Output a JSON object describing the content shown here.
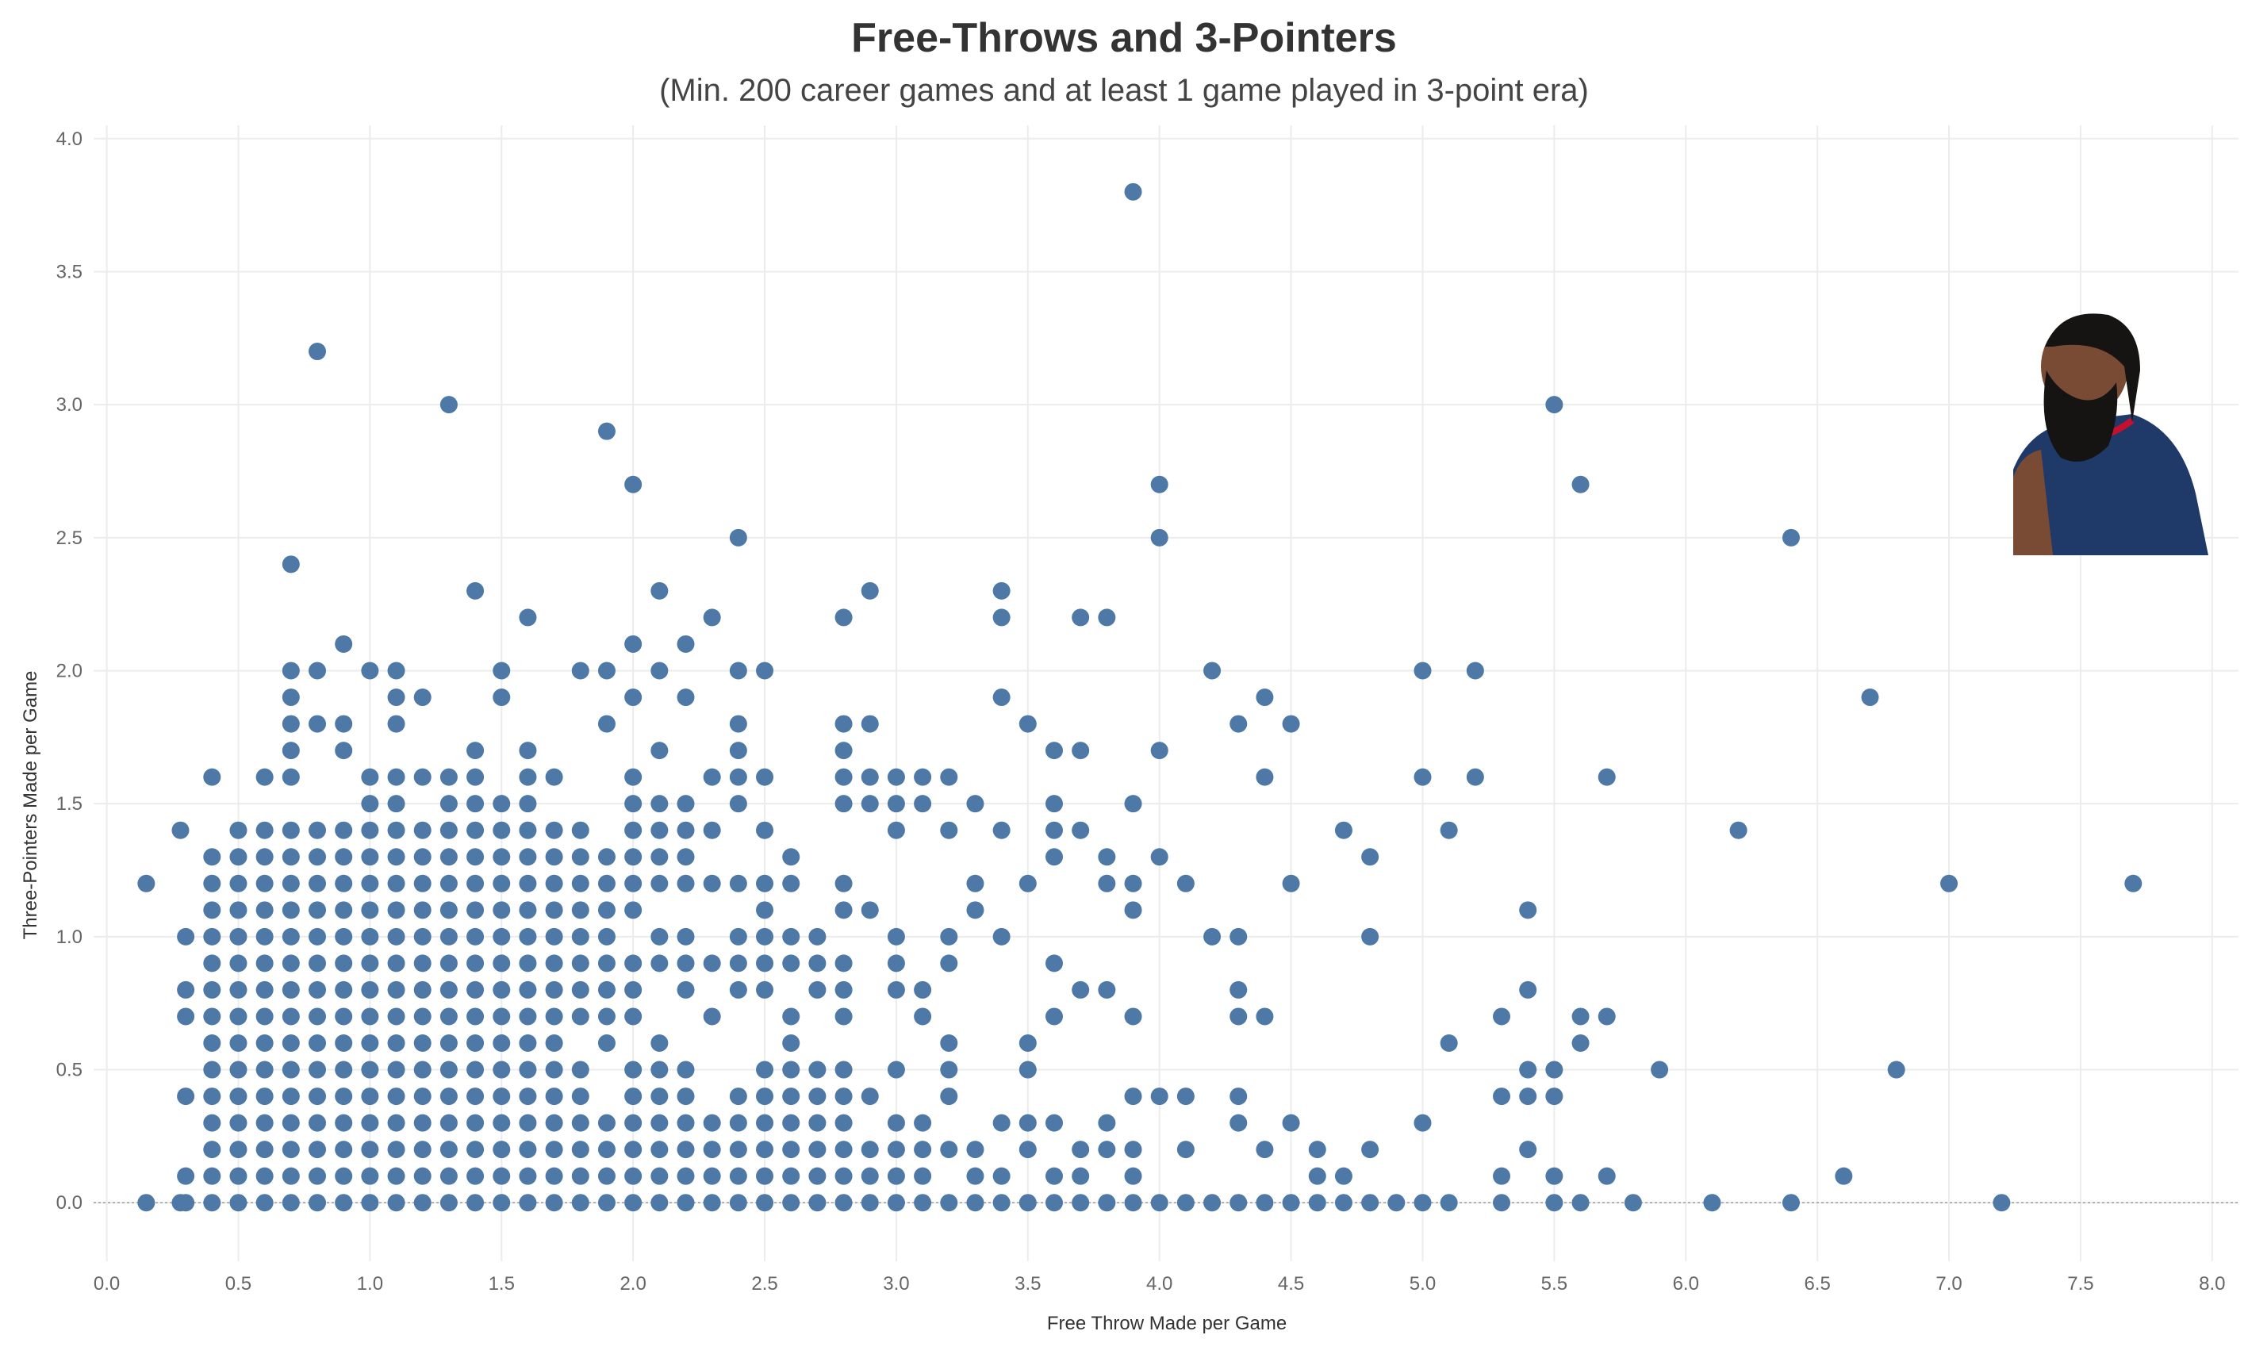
{
  "chart_data": {
    "type": "scatter",
    "title": "Free-Throws and 3-Pointers",
    "subtitle": "(Min. 200 career games and at least 1 game played in 3-point era)",
    "xlabel": "Free Throw Made per Game",
    "ylabel": "Three-Pointers Made per Game",
    "xlim": [
      -0.05,
      8.1
    ],
    "ylim": [
      -0.22,
      4.05
    ],
    "xticks": [
      "0.0",
      "0.5",
      "1.0",
      "1.5",
      "2.0",
      "2.5",
      "3.0",
      "3.5",
      "4.0",
      "4.5",
      "5.0",
      "5.5",
      "6.0",
      "6.5",
      "7.0",
      "7.5",
      "8.0"
    ],
    "yticks": [
      "0.0",
      "0.5",
      "1.0",
      "1.5",
      "2.0",
      "2.5",
      "3.0",
      "3.5",
      "4.0"
    ],
    "grid": true,
    "marker_color": "#4e79a7",
    "points": [
      [
        0.8,
        3.2
      ],
      [
        1.3,
        3.0
      ],
      [
        1.9,
        2.9
      ],
      [
        2.0,
        2.7
      ],
      [
        0.7,
        2.4
      ],
      [
        2.4,
        2.5
      ],
      [
        1.4,
        2.3
      ],
      [
        2.1,
        2.3
      ],
      [
        2.3,
        2.2
      ],
      [
        1.6,
        2.2
      ],
      [
        0.9,
        2.1
      ],
      [
        2.0,
        2.1
      ],
      [
        2.2,
        2.1
      ],
      [
        3.9,
        3.8
      ],
      [
        4.0,
        2.7
      ],
      [
        4.0,
        2.5
      ],
      [
        3.4,
        2.3
      ],
      [
        3.4,
        2.2
      ],
      [
        2.9,
        2.3
      ],
      [
        2.8,
        2.2
      ],
      [
        3.7,
        2.2
      ],
      [
        3.8,
        2.2
      ],
      [
        4.2,
        2.0
      ],
      [
        4.4,
        1.9
      ],
      [
        4.3,
        1.8
      ],
      [
        4.5,
        1.8
      ],
      [
        4.4,
        1.6
      ],
      [
        3.4,
        1.9
      ],
      [
        3.5,
        1.8
      ],
      [
        3.6,
        1.7
      ],
      [
        3.7,
        1.7
      ],
      [
        4.0,
        1.7
      ],
      [
        3.9,
        1.5
      ],
      [
        5.5,
        3.0
      ],
      [
        5.6,
        2.7
      ],
      [
        6.4,
        2.5
      ],
      [
        5.0,
        2.0
      ],
      [
        5.2,
        2.0
      ],
      [
        6.7,
        1.9
      ],
      [
        5.0,
        1.6
      ],
      [
        5.2,
        1.6
      ],
      [
        5.7,
        1.6
      ],
      [
        6.2,
        1.4
      ],
      [
        5.1,
        1.4
      ],
      [
        4.7,
        1.4
      ],
      [
        4.8,
        1.3
      ],
      [
        7.0,
        1.2
      ],
      [
        7.7,
        1.2
      ],
      [
        0.15,
        1.2
      ],
      [
        0.28,
        1.4
      ],
      [
        0.4,
        1.6
      ],
      [
        0.6,
        1.6
      ],
      [
        2.4,
        2.0
      ],
      [
        2.5,
        2.0
      ],
      [
        2.1,
        2.0
      ],
      [
        1.8,
        2.0
      ],
      [
        1.9,
        2.0
      ],
      [
        1.5,
        2.0
      ],
      [
        1.5,
        1.9
      ],
      [
        1.0,
        2.0
      ],
      [
        1.1,
        2.0
      ],
      [
        1.1,
        1.9
      ],
      [
        1.2,
        1.9
      ],
      [
        1.1,
        1.8
      ],
      [
        0.7,
        2.0
      ],
      [
        0.8,
        2.0
      ],
      [
        0.7,
        1.9
      ],
      [
        0.7,
        1.8
      ],
      [
        0.8,
        1.8
      ],
      [
        0.9,
        1.8
      ],
      [
        0.7,
        1.7
      ],
      [
        0.9,
        1.7
      ],
      [
        0.7,
        1.6
      ],
      [
        1.9,
        1.8
      ],
      [
        2.0,
        1.9
      ],
      [
        2.2,
        1.9
      ],
      [
        2.4,
        1.8
      ],
      [
        2.4,
        1.7
      ],
      [
        2.1,
        1.7
      ],
      [
        1.4,
        1.7
      ],
      [
        1.6,
        1.7
      ],
      [
        2.8,
        1.8
      ],
      [
        2.9,
        1.8
      ],
      [
        2.8,
        1.7
      ],
      [
        1.0,
        1.6
      ],
      [
        1.1,
        1.6
      ],
      [
        1.2,
        1.6
      ],
      [
        1.3,
        1.6
      ],
      [
        1.4,
        1.6
      ],
      [
        1.6,
        1.6
      ],
      [
        1.7,
        1.6
      ],
      [
        2.0,
        1.6
      ],
      [
        2.3,
        1.6
      ],
      [
        2.4,
        1.6
      ],
      [
        2.5,
        1.6
      ],
      [
        2.8,
        1.6
      ],
      [
        2.9,
        1.6
      ],
      [
        3.0,
        1.6
      ],
      [
        3.1,
        1.6
      ],
      [
        3.2,
        1.6
      ],
      [
        1.0,
        1.5
      ],
      [
        1.1,
        1.5
      ],
      [
        1.3,
        1.5
      ],
      [
        1.4,
        1.5
      ],
      [
        1.5,
        1.5
      ],
      [
        1.6,
        1.5
      ],
      [
        2.0,
        1.5
      ],
      [
        2.1,
        1.5
      ],
      [
        2.2,
        1.5
      ],
      [
        2.4,
        1.5
      ],
      [
        2.8,
        1.5
      ],
      [
        2.9,
        1.5
      ],
      [
        3.0,
        1.5
      ],
      [
        3.1,
        1.5
      ],
      [
        3.3,
        1.5
      ],
      [
        3.6,
        1.5
      ],
      [
        1.4,
        1.4
      ],
      [
        1.5,
        1.4
      ],
      [
        1.6,
        1.4
      ],
      [
        1.7,
        1.4
      ],
      [
        1.8,
        1.4
      ],
      [
        2.0,
        1.4
      ],
      [
        2.1,
        1.4
      ],
      [
        2.2,
        1.4
      ],
      [
        2.3,
        1.4
      ],
      [
        2.5,
        1.4
      ],
      [
        3.0,
        1.4
      ],
      [
        3.2,
        1.4
      ],
      [
        3.4,
        1.4
      ],
      [
        3.6,
        1.4
      ],
      [
        3.7,
        1.4
      ],
      [
        1.5,
        1.3
      ],
      [
        1.6,
        1.3
      ],
      [
        1.7,
        1.3
      ],
      [
        1.8,
        1.3
      ],
      [
        1.9,
        1.3
      ],
      [
        2.0,
        1.3
      ],
      [
        2.1,
        1.3
      ],
      [
        2.2,
        1.3
      ],
      [
        2.6,
        1.3
      ],
      [
        3.6,
        1.3
      ],
      [
        3.8,
        1.3
      ],
      [
        4.0,
        1.3
      ],
      [
        1.5,
        1.2
      ],
      [
        1.6,
        1.2
      ],
      [
        1.7,
        1.2
      ],
      [
        1.8,
        1.2
      ],
      [
        1.9,
        1.2
      ],
      [
        2.0,
        1.2
      ],
      [
        2.1,
        1.2
      ],
      [
        2.2,
        1.2
      ],
      [
        2.3,
        1.2
      ],
      [
        2.4,
        1.2
      ],
      [
        2.5,
        1.2
      ],
      [
        2.6,
        1.2
      ],
      [
        2.8,
        1.2
      ],
      [
        3.3,
        1.2
      ],
      [
        3.5,
        1.2
      ],
      [
        3.8,
        1.2
      ],
      [
        3.9,
        1.2
      ],
      [
        4.1,
        1.2
      ],
      [
        4.5,
        1.2
      ],
      [
        1.7,
        1.1
      ],
      [
        1.8,
        1.1
      ],
      [
        1.9,
        1.1
      ],
      [
        2.0,
        1.1
      ],
      [
        2.5,
        1.1
      ],
      [
        2.8,
        1.1
      ],
      [
        2.9,
        1.1
      ],
      [
        3.3,
        1.1
      ],
      [
        3.9,
        1.1
      ],
      [
        5.4,
        1.1
      ],
      [
        1.8,
        1.0
      ],
      [
        1.9,
        1.0
      ],
      [
        2.1,
        1.0
      ],
      [
        2.2,
        1.0
      ],
      [
        2.4,
        1.0
      ],
      [
        2.5,
        1.0
      ],
      [
        2.6,
        1.0
      ],
      [
        2.7,
        1.0
      ],
      [
        3.0,
        1.0
      ],
      [
        3.2,
        1.0
      ],
      [
        3.4,
        1.0
      ],
      [
        4.2,
        1.0
      ],
      [
        4.3,
        1.0
      ],
      [
        4.8,
        1.0
      ],
      [
        1.8,
        0.9
      ],
      [
        1.9,
        0.9
      ],
      [
        2.0,
        0.9
      ],
      [
        2.1,
        0.9
      ],
      [
        2.2,
        0.9
      ],
      [
        2.3,
        0.9
      ],
      [
        2.4,
        0.9
      ],
      [
        2.5,
        0.9
      ],
      [
        2.6,
        0.9
      ],
      [
        2.7,
        0.9
      ],
      [
        2.8,
        0.9
      ],
      [
        3.0,
        0.9
      ],
      [
        3.2,
        0.9
      ],
      [
        3.6,
        0.9
      ],
      [
        1.8,
        0.8
      ],
      [
        1.9,
        0.8
      ],
      [
        2.0,
        0.8
      ],
      [
        2.2,
        0.8
      ],
      [
        2.4,
        0.8
      ],
      [
        2.5,
        0.8
      ],
      [
        2.7,
        0.8
      ],
      [
        2.8,
        0.8
      ],
      [
        3.0,
        0.8
      ],
      [
        3.1,
        0.8
      ],
      [
        3.7,
        0.8
      ],
      [
        3.8,
        0.8
      ],
      [
        4.3,
        0.8
      ],
      [
        5.4,
        0.8
      ],
      [
        1.8,
        0.7
      ],
      [
        1.9,
        0.7
      ],
      [
        2.0,
        0.7
      ],
      [
        2.3,
        0.7
      ],
      [
        2.6,
        0.7
      ],
      [
        2.8,
        0.7
      ],
      [
        3.1,
        0.7
      ],
      [
        3.6,
        0.7
      ],
      [
        3.9,
        0.7
      ],
      [
        4.3,
        0.7
      ],
      [
        4.4,
        0.7
      ],
      [
        5.3,
        0.7
      ],
      [
        5.6,
        0.7
      ],
      [
        5.7,
        0.7
      ],
      [
        1.9,
        0.6
      ],
      [
        2.1,
        0.6
      ],
      [
        2.6,
        0.6
      ],
      [
        3.2,
        0.6
      ],
      [
        3.5,
        0.6
      ],
      [
        5.1,
        0.6
      ],
      [
        5.6,
        0.6
      ],
      [
        1.8,
        0.5
      ],
      [
        2.0,
        0.5
      ],
      [
        2.1,
        0.5
      ],
      [
        2.2,
        0.5
      ],
      [
        2.5,
        0.5
      ],
      [
        2.6,
        0.5
      ],
      [
        2.7,
        0.5
      ],
      [
        2.8,
        0.5
      ],
      [
        3.0,
        0.5
      ],
      [
        3.2,
        0.5
      ],
      [
        3.5,
        0.5
      ],
      [
        5.4,
        0.5
      ],
      [
        5.5,
        0.5
      ],
      [
        5.9,
        0.5
      ],
      [
        6.8,
        0.5
      ],
      [
        1.8,
        0.4
      ],
      [
        2.0,
        0.4
      ],
      [
        2.1,
        0.4
      ],
      [
        2.2,
        0.4
      ],
      [
        2.4,
        0.4
      ],
      [
        2.5,
        0.4
      ],
      [
        2.6,
        0.4
      ],
      [
        2.7,
        0.4
      ],
      [
        2.8,
        0.4
      ],
      [
        2.9,
        0.4
      ],
      [
        3.2,
        0.4
      ],
      [
        3.9,
        0.4
      ],
      [
        4.0,
        0.4
      ],
      [
        4.1,
        0.4
      ],
      [
        4.3,
        0.4
      ],
      [
        5.3,
        0.4
      ],
      [
        5.4,
        0.4
      ],
      [
        5.5,
        0.4
      ],
      [
        1.8,
        0.3
      ],
      [
        1.9,
        0.3
      ],
      [
        2.0,
        0.3
      ],
      [
        2.1,
        0.3
      ],
      [
        2.2,
        0.3
      ],
      [
        2.3,
        0.3
      ],
      [
        2.4,
        0.3
      ],
      [
        2.5,
        0.3
      ],
      [
        2.6,
        0.3
      ],
      [
        2.7,
        0.3
      ],
      [
        2.8,
        0.3
      ],
      [
        3.0,
        0.3
      ],
      [
        3.1,
        0.3
      ],
      [
        3.4,
        0.3
      ],
      [
        3.5,
        0.3
      ],
      [
        3.6,
        0.3
      ],
      [
        3.8,
        0.3
      ],
      [
        4.3,
        0.3
      ],
      [
        4.5,
        0.3
      ],
      [
        5.0,
        0.3
      ],
      [
        1.8,
        0.2
      ],
      [
        1.9,
        0.2
      ],
      [
        2.0,
        0.2
      ],
      [
        2.1,
        0.2
      ],
      [
        2.2,
        0.2
      ],
      [
        2.3,
        0.2
      ],
      [
        2.4,
        0.2
      ],
      [
        2.5,
        0.2
      ],
      [
        2.6,
        0.2
      ],
      [
        2.7,
        0.2
      ],
      [
        2.8,
        0.2
      ],
      [
        2.9,
        0.2
      ],
      [
        3.0,
        0.2
      ],
      [
        3.1,
        0.2
      ],
      [
        3.2,
        0.2
      ],
      [
        3.3,
        0.2
      ],
      [
        3.5,
        0.2
      ],
      [
        3.7,
        0.2
      ],
      [
        3.8,
        0.2
      ],
      [
        3.9,
        0.2
      ],
      [
        4.1,
        0.2
      ],
      [
        4.4,
        0.2
      ],
      [
        4.6,
        0.2
      ],
      [
        4.8,
        0.2
      ],
      [
        5.4,
        0.2
      ],
      [
        1.8,
        0.1
      ],
      [
        1.9,
        0.1
      ],
      [
        2.0,
        0.1
      ],
      [
        2.1,
        0.1
      ],
      [
        2.2,
        0.1
      ],
      [
        2.3,
        0.1
      ],
      [
        2.4,
        0.1
      ],
      [
        2.5,
        0.1
      ],
      [
        2.6,
        0.1
      ],
      [
        2.7,
        0.1
      ],
      [
        2.8,
        0.1
      ],
      [
        2.9,
        0.1
      ],
      [
        3.0,
        0.1
      ],
      [
        3.1,
        0.1
      ],
      [
        3.3,
        0.1
      ],
      [
        3.4,
        0.1
      ],
      [
        3.6,
        0.1
      ],
      [
        3.7,
        0.1
      ],
      [
        3.9,
        0.1
      ],
      [
        4.6,
        0.1
      ],
      [
        4.7,
        0.1
      ],
      [
        5.3,
        0.1
      ],
      [
        5.5,
        0.1
      ],
      [
        5.7,
        0.1
      ],
      [
        6.6,
        0.1
      ],
      [
        0.15,
        0.0
      ],
      [
        0.28,
        0.0
      ],
      [
        0.4,
        0.0
      ],
      [
        1.8,
        0.0
      ],
      [
        1.9,
        0.0
      ],
      [
        2.0,
        0.0
      ],
      [
        2.1,
        0.0
      ],
      [
        2.2,
        0.0
      ],
      [
        2.3,
        0.0
      ],
      [
        2.4,
        0.0
      ],
      [
        2.5,
        0.0
      ],
      [
        2.6,
        0.0
      ],
      [
        2.7,
        0.0
      ],
      [
        2.8,
        0.0
      ],
      [
        2.9,
        0.0
      ],
      [
        3.0,
        0.0
      ],
      [
        3.1,
        0.0
      ],
      [
        3.2,
        0.0
      ],
      [
        3.3,
        0.0
      ],
      [
        3.4,
        0.0
      ],
      [
        3.5,
        0.0
      ],
      [
        3.6,
        0.0
      ],
      [
        3.7,
        0.0
      ],
      [
        3.8,
        0.0
      ],
      [
        3.9,
        0.0
      ],
      [
        4.0,
        0.0
      ],
      [
        4.1,
        0.0
      ],
      [
        4.2,
        0.0
      ],
      [
        4.3,
        0.0
      ],
      [
        4.4,
        0.0
      ],
      [
        4.5,
        0.0
      ],
      [
        4.6,
        0.0
      ],
      [
        4.7,
        0.0
      ],
      [
        4.8,
        0.0
      ],
      [
        4.9,
        0.0
      ],
      [
        5.0,
        0.0
      ],
      [
        5.1,
        0.0
      ],
      [
        5.3,
        0.0
      ],
      [
        5.5,
        0.0
      ],
      [
        5.6,
        0.0
      ],
      [
        5.8,
        0.0
      ],
      [
        6.1,
        0.0
      ],
      [
        6.4,
        0.0
      ],
      [
        7.2,
        0.0
      ]
    ],
    "dense_region": {
      "description_note": "",
      "x_values": [
        0.3,
        0.4,
        0.5,
        0.6,
        0.7,
        0.8,
        0.9,
        1.0,
        1.1,
        1.2,
        1.3,
        1.4,
        1.5,
        1.6,
        1.7
      ],
      "y_values": [
        0.0,
        0.1,
        0.2,
        0.3,
        0.4,
        0.5,
        0.6,
        0.7,
        0.8,
        0.9,
        1.0,
        1.1,
        1.2,
        1.3,
        1.4
      ]
    }
  },
  "photo": {
    "icon": "player-photo-icon",
    "jersey_color": "#1f3a68",
    "trim_color": "#c8102e",
    "skin_color": "#7a4b34",
    "hair_color": "#161412"
  }
}
